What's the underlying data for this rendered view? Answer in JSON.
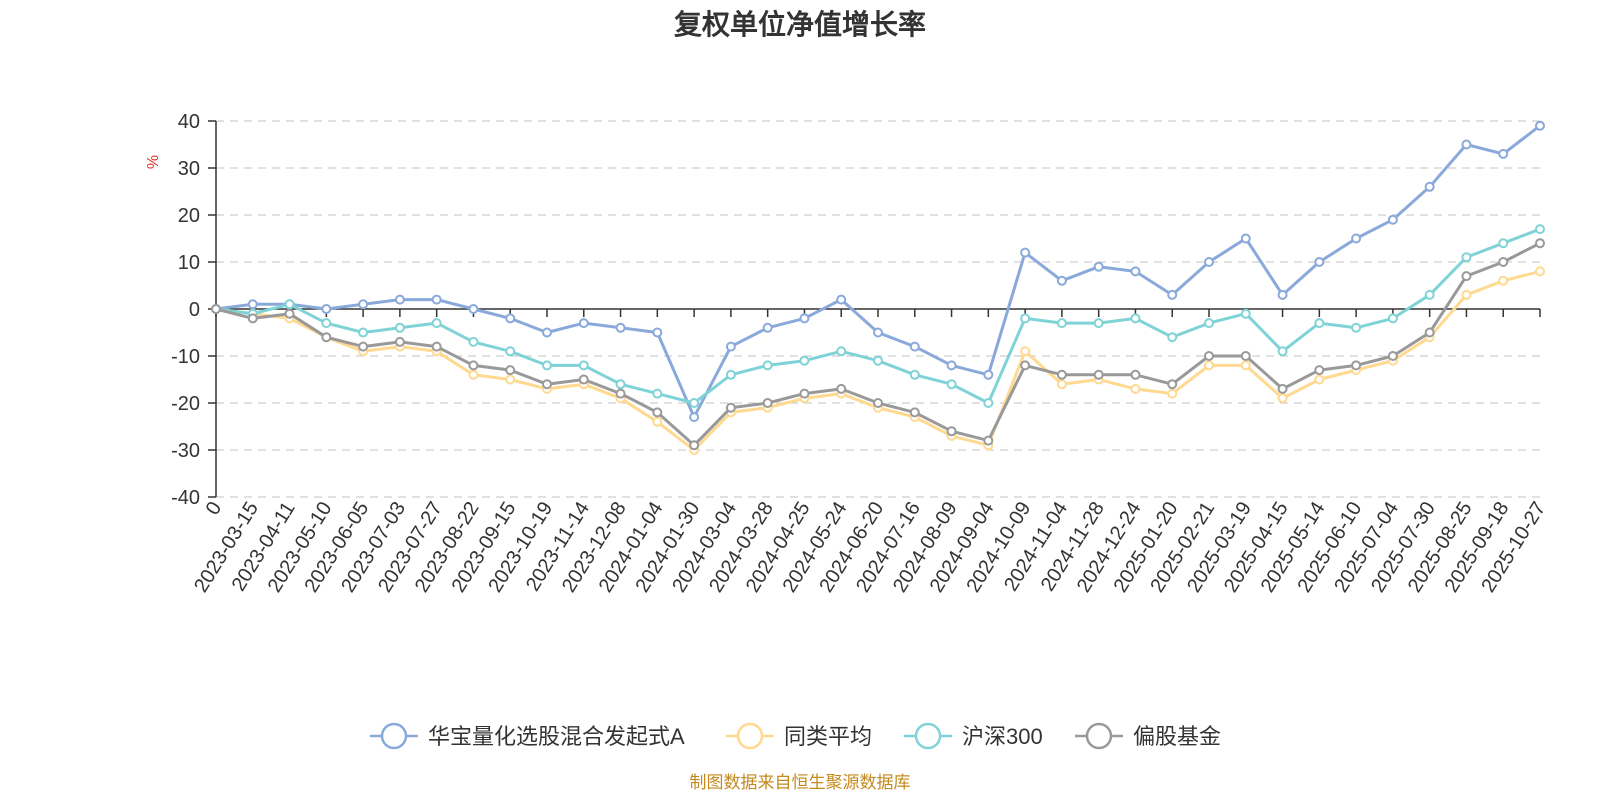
{
  "chart_data": {
    "type": "line",
    "title": "复权单位净值增长率",
    "ylabel": "%",
    "ylim": [
      -40,
      40
    ],
    "yticks": [
      -40,
      -30,
      -20,
      -10,
      0,
      10,
      20,
      30,
      40
    ],
    "grid": true,
    "legend_position": "bottom",
    "x": [
      "0",
      "2023-03-15",
      "2023-04-11",
      "2023-05-10",
      "2023-06-05",
      "2023-07-03",
      "2023-07-27",
      "2023-08-22",
      "2023-09-15",
      "2023-10-19",
      "2023-11-14",
      "2023-12-08",
      "2024-01-04",
      "2024-01-30",
      "2024-03-04",
      "2024-03-28",
      "2024-04-25",
      "2024-05-24",
      "2024-06-20",
      "2024-07-16",
      "2024-08-09",
      "2024-09-04",
      "2024-10-09",
      "2024-11-04",
      "2024-11-28",
      "2024-12-24",
      "2025-01-20",
      "2025-02-21",
      "2025-03-19",
      "2025-04-15",
      "2025-05-14",
      "2025-06-10",
      "2025-07-04",
      "2025-07-30",
      "2025-08-25",
      "2025-09-18",
      "2025-10-27"
    ],
    "series": [
      {
        "name": "华宝量化选股混合发起式A",
        "color": "#8aa9db",
        "values": [
          0,
          1,
          1,
          0,
          1,
          2,
          2,
          0,
          -2,
          -5,
          -3,
          -4,
          -5,
          -23,
          -8,
          -4,
          -2,
          2,
          -5,
          -8,
          -12,
          -14,
          12,
          6,
          9,
          8,
          3,
          10,
          15,
          3,
          10,
          15,
          19,
          26,
          35,
          33,
          39
        ]
      },
      {
        "name": "同类平均",
        "color": "#ffd98f",
        "values": [
          0,
          -1,
          -2,
          -6,
          -9,
          -8,
          -9,
          -14,
          -15,
          -17,
          -16,
          -19,
          -24,
          -30,
          -22,
          -21,
          -19,
          -18,
          -21,
          -23,
          -27,
          -29,
          -9,
          -16,
          -15,
          -17,
          -18,
          -12,
          -12,
          -19,
          -15,
          -13,
          -11,
          -6,
          3,
          6,
          8
        ]
      },
      {
        "name": "沪深300",
        "color": "#7fd3d6",
        "values": [
          0,
          -1,
          1,
          -3,
          -5,
          -4,
          -3,
          -7,
          -9,
          -12,
          -12,
          -16,
          -18,
          -20,
          -14,
          -12,
          -11,
          -9,
          -11,
          -14,
          -16,
          -20,
          -2,
          -3,
          -3,
          -2,
          -6,
          -3,
          -1,
          -9,
          -3,
          -4,
          -2,
          3,
          11,
          14,
          17
        ]
      },
      {
        "name": "偏股基金",
        "color": "#999999",
        "values": [
          0,
          -2,
          -1,
          -6,
          -8,
          -7,
          -8,
          -12,
          -13,
          -16,
          -15,
          -18,
          -22,
          -29,
          -21,
          -20,
          -18,
          -17,
          -20,
          -22,
          -26,
          -28,
          -12,
          -14,
          -14,
          -14,
          -16,
          -10,
          -10,
          -17,
          -13,
          -12,
          -10,
          -5,
          7,
          10,
          14
        ]
      }
    ]
  },
  "footer": {
    "source_text": "制图数据来自恒生聚源数据库"
  }
}
